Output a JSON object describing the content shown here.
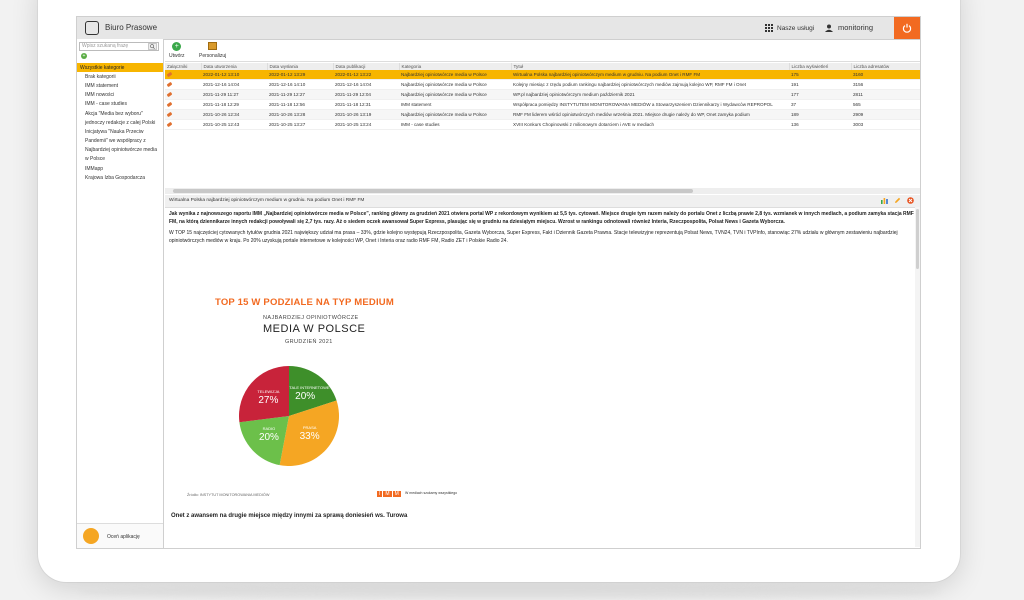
{
  "app": {
    "title": "Biuro Prasowe"
  },
  "header": {
    "services_label": "Nasze usługi",
    "user_label": "monitoring"
  },
  "sidebar": {
    "search_placeholder": "Wpisz szukaną frazę",
    "categories": [
      "Wszystkie kategorie",
      "Brak kategorii",
      "IMM statement",
      "IMM nowości",
      "IMM - case studies",
      "Akcja \"Media bez wyboru\"",
      "jednoczy redakcje z całej Polski",
      "Inicjatywa \"Nauka Przeciw",
      "Pandemii\" we współpracy z",
      "Najbardziej opiniotwórcze media",
      "w Polsce",
      "IMMapp",
      "Krajowa Izba Gospodarcza"
    ],
    "rate_label": "Oceń aplikację"
  },
  "toolbar": {
    "create_label": "Utwórz",
    "personalize_label": "Personalizuj"
  },
  "table": {
    "columns": [
      "Załączniki",
      "Data utworzenia",
      "Data wysłania",
      "Data publikacji",
      "Kategoria",
      "Tytuł",
      "Liczba wyświetleń",
      "Liczba adresatów"
    ],
    "rows": [
      {
        "created": "2022-01-12 13:10",
        "sent": "2022-01-12 13:29",
        "published": "2022-01-12 13:22",
        "category": "Najbardziej opiniotwórcze media w Polsce",
        "title": "Wirtualna Polska najbardziej opiniotwórczym medium w grudniu. Na podium Onet i RMF FM",
        "views": "175",
        "recipients": "3160"
      },
      {
        "created": "2021-12-16 14:04",
        "sent": "2021-12-16 14:10",
        "published": "2021-12-16 14:04",
        "category": "Najbardziej opiniotwórcze media w Polsce",
        "title": "Kolejny miesiąc z rzędu podium rankingu najbardziej opiniotwórczych mediów zajmują kolejno WP, RMF FM i Onet",
        "views": "191",
        "recipients": "3156"
      },
      {
        "created": "2021-11-29 11:27",
        "sent": "2021-11-29 12:27",
        "published": "2021-11-29 12:04",
        "category": "Najbardziej opiniotwórcze media w Polsce",
        "title": "WP.pl najbardziej opiniotwórczym medium październik 2021",
        "views": "177",
        "recipients": "2811"
      },
      {
        "created": "2021-11-18 12:29",
        "sent": "2021-11-18 12:56",
        "published": "2021-11-18 12:31",
        "category": "IMM statement",
        "title": "Współpraca pomiędzy INSTYTUTEM MONITOROWANIA MEDIÓW a Stowarzyszeniem Dziennikarzy i Wydawców REPROPOL",
        "views": "37",
        "recipients": "565"
      },
      {
        "created": "2021-10-26 12:34",
        "sent": "2021-10-26 13:28",
        "published": "2021-10-26 13:19",
        "category": "Najbardziej opiniotwórcze media w Polsce",
        "title": "RMF FM liderem wśród opiniotwórczych mediów września 2021. Miejsce drugie należy do WP, Onet zamyka podium",
        "views": "189",
        "recipients": "2909"
      },
      {
        "created": "2021-10-25 12:43",
        "sent": "2021-10-25 13:27",
        "published": "2021-10-25 13:24",
        "category": "IMM - case studies",
        "title": "XVIII Konkurs Chopinowski z milionowym dotarciem i AVE w mediach",
        "views": "136",
        "recipients": "3003"
      }
    ]
  },
  "preview": {
    "header_title": "Wirtualna Polska najbardziej opiniotwórczym medium w grudniu. Na podium Onet i RMF FM",
    "para1": "Jak wynika z najnowszego raportu IMM „Najbardziej opiniotwórcze media w Polsce”, ranking główny za grudzień 2021 otwiera portal WP z rekordowym wynikiem aż 5,5 tys. cytowań. Miejsce drugie tym razem należy do portalu Onet z liczbą prawie 2,8 tys. wzmianek w innych mediach, a podium zamyka stacja RMF FM, na którą dziennikarze innych redakcji powoływali się 2,7 tys. razy. Aż o siedem oczek awansował Super Express, plasując się w grudniu na dziesiątym miejscu. Wzrost w rankingu odnotowali również Interia, Rzeczpospolita, Polsat News i Gazeta Wyborcza.",
    "para2": "W TOP 15 najczęściej cytowanych tytułów grudnia 2021 największy udział ma prasa – 33%, gdzie kolejno występują Rzeczpospolita, Gazeta Wyborcza, Super Express, Fakt i Dziennik Gazeta Prawna. Stacje telewizyjne reprezentują Polsat News, TVN24, TVN i TVPInfo, stanowiąc 27% udziału w głównym zestawieniu najbardziej opiniotwórczych mediów w kraju. Po 20% uzyskują portale internetowe w kolejności WP, Onet i Interia oraz radio RMF FM, Radio ZET i Polskie Radio 24.",
    "bottom_heading": "Onet z awansem na drugie miejsce między innymi za sprawą doniesień ws. Turowa"
  },
  "infographic": {
    "title": "TOP 15 W PODZIALE NA TYP MEDIUM",
    "sub1": "NAJBARDZIEJ OPINIOTWÓRCZE",
    "sub2": "MEDIA W POLSCE",
    "sub3": "GRUDZIEŃ 2021",
    "source": "Źródło: INSTYTUT MONITOROWANIA MEDIÓW",
    "imm_tag": "W mediach szukamy wszystkiego"
  },
  "chart_data": {
    "type": "pie",
    "categories": [
      "PORTALE INTERNETOWE",
      "PRASA",
      "RADIO",
      "TELEWIZJA"
    ],
    "values": [
      20,
      33,
      20,
      27
    ],
    "labels": [
      "20%",
      "33%",
      "20%",
      "27%"
    ],
    "colors": [
      "#3e8f2a",
      "#f5a623",
      "#6cc04a",
      "#c8233a"
    ]
  }
}
